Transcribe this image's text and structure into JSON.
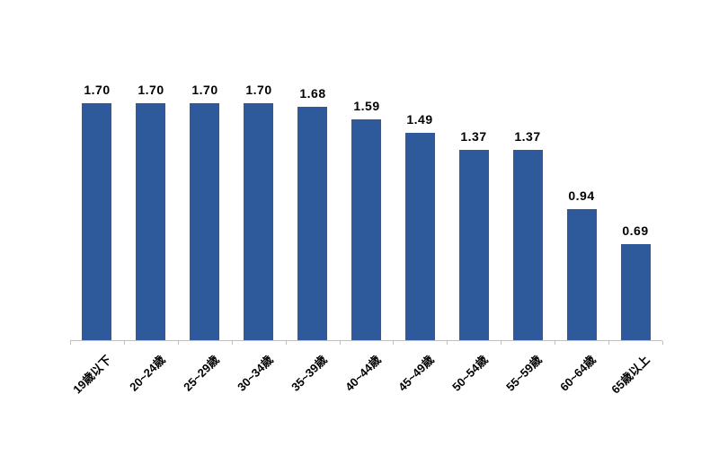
{
  "chart_data": {
    "type": "bar",
    "title": "",
    "xlabel": "",
    "ylabel": "",
    "categories": [
      "19歳以下",
      "20~24歳",
      "25~29歳",
      "30~34歳",
      "35~39歳",
      "40~44歳",
      "45~49歳",
      "50~54歳",
      "55~59歳",
      "60~64歳",
      "65歳以上"
    ],
    "values": [
      1.7,
      1.7,
      1.7,
      1.7,
      1.68,
      1.59,
      1.49,
      1.37,
      1.37,
      0.94,
      0.69
    ],
    "value_labels": [
      "1.70",
      "1.70",
      "1.70",
      "1.70",
      "1.68",
      "1.59",
      "1.49",
      "1.37",
      "1.37",
      "0.94",
      "0.69"
    ],
    "ylim": [
      0,
      2.4
    ],
    "grid": false,
    "legend_position": "none",
    "bar_color": "#2E5A9B",
    "axis_color": "#BFBFBF",
    "label_color": "#000000",
    "background_color": "#FFFFFF"
  }
}
